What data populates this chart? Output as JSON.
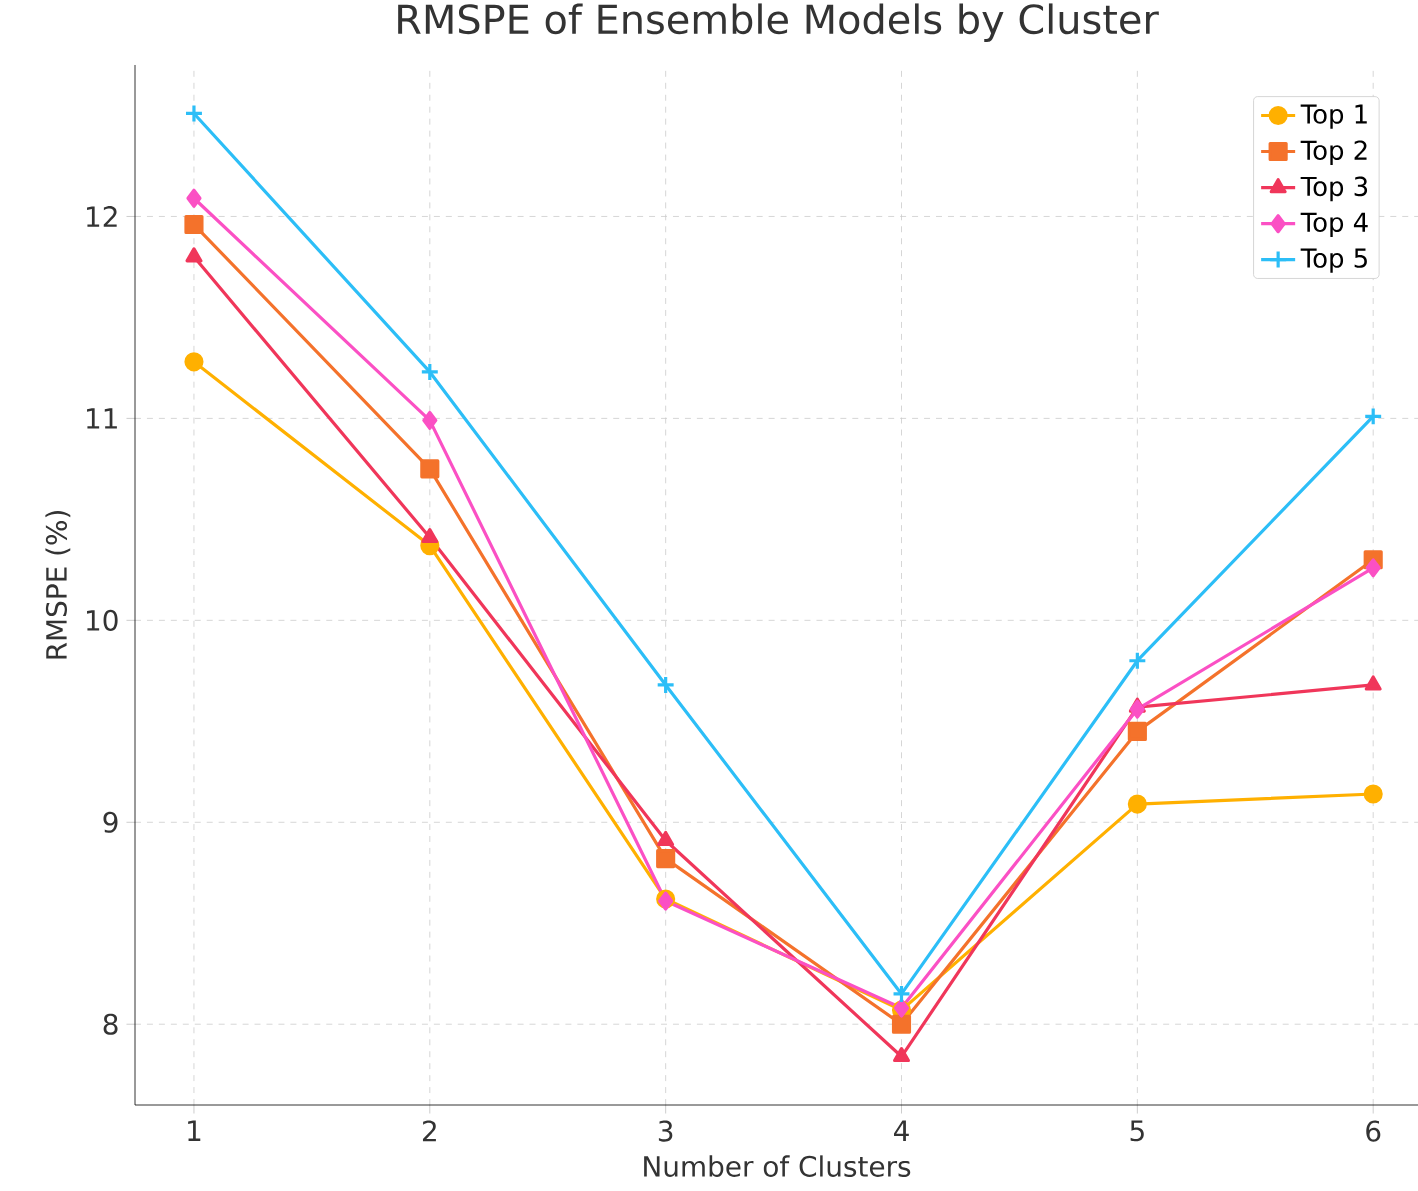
{
  "chart_data": {
    "type": "line",
    "title": "RMSPE of Ensemble Models by Cluster",
    "xlabel": "Number of Clusters",
    "ylabel": "RMSPE (%)",
    "x": [
      1,
      2,
      3,
      4,
      5,
      6
    ],
    "xlim": [
      0.75,
      6.19
    ],
    "ylim": [
      7.6,
      12.75
    ],
    "xticks": [
      1,
      2,
      3,
      4,
      5,
      6
    ],
    "yticks": [
      8,
      9,
      10,
      11,
      12
    ],
    "grid": true,
    "legend": "top right",
    "line_style": "solid",
    "series": [
      {
        "name": "Top 1",
        "color": "#ffb000",
        "marker": "circle",
        "values": [
          11.28,
          10.37,
          8.62,
          8.07,
          9.09,
          9.14
        ]
      },
      {
        "name": "Top 2",
        "color": "#f4722b",
        "marker": "square",
        "values": [
          11.96,
          10.75,
          8.82,
          8.0,
          9.45,
          10.3
        ]
      },
      {
        "name": "Top 3",
        "color": "#f0365a",
        "marker": "triangle",
        "values": [
          11.8,
          10.41,
          8.91,
          7.84,
          9.57,
          9.68
        ]
      },
      {
        "name": "Top 4",
        "color": "#fb50c4",
        "marker": "diamond",
        "values": [
          12.09,
          10.99,
          8.61,
          8.08,
          9.56,
          10.26
        ]
      },
      {
        "name": "Top 5",
        "color": "#2cbef7",
        "marker": "cross",
        "values": [
          12.51,
          11.23,
          9.68,
          8.15,
          9.8,
          11.01
        ]
      }
    ]
  }
}
